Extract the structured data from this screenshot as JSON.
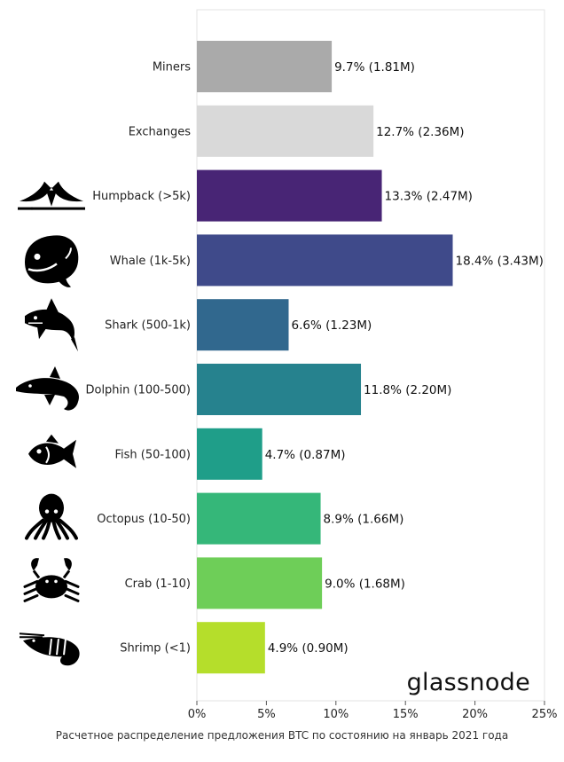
{
  "chart_data": {
    "type": "bar",
    "orientation": "horizontal",
    "categories": [
      "Miners",
      "Exchanges",
      "Humpback (>5k)",
      "Whale (1k-5k)",
      "Shark (500-1k)",
      "Dolphin (100-500)",
      "Fish (50-100)",
      "Octopus (10-50)",
      "Crab (1-10)",
      "Shrimp (<1)"
    ],
    "values": [
      9.7,
      12.7,
      13.3,
      18.4,
      6.6,
      11.8,
      4.7,
      8.9,
      9.0,
      4.9
    ],
    "data_labels": [
      "9.7% (1.81M)",
      "12.7% (2.36M)",
      "13.3% (2.47M)",
      "18.4% (3.43M)",
      "6.6% (1.23M)",
      "11.8% (2.20M)",
      "4.7% (0.87M)",
      "8.9% (1.66M)",
      "9.0% (1.68M)",
      "4.9% (0.90M)"
    ],
    "colors": [
      "#aaaaaa",
      "#d9d9d9",
      "#482575",
      "#3f4a8a",
      "#31688e",
      "#26828e",
      "#1f9e89",
      "#35b779",
      "#6ece58",
      "#b5de2b"
    ],
    "icons": [
      null,
      null,
      "humpback-icon",
      "whale-icon",
      "shark-icon",
      "dolphin-icon",
      "fish-icon",
      "octopus-icon",
      "crab-icon",
      "shrimp-icon"
    ],
    "xlim": [
      0,
      25
    ],
    "xticks": [
      "0%",
      "5%",
      "10%",
      "15%",
      "20%",
      "25%"
    ],
    "xtick_values": [
      0,
      5,
      10,
      15,
      20,
      25
    ],
    "grid": false,
    "brand": "glassnode",
    "caption": "Расчетное распределение предложения BTC по состоянию на январь 2021 года"
  }
}
